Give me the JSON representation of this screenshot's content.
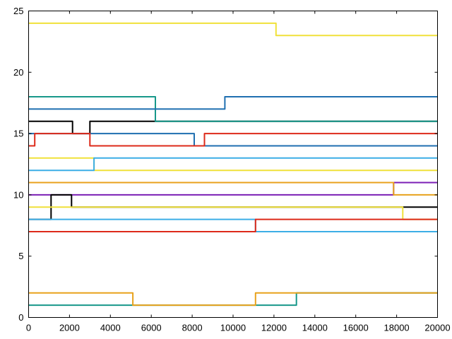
{
  "chart_data": {
    "type": "line",
    "title": "",
    "xlabel": "",
    "ylabel": "",
    "xlim": [
      0,
      20000
    ],
    "ylim": [
      0,
      25
    ],
    "x_ticks": [
      0,
      2000,
      4000,
      6000,
      8000,
      10000,
      12000,
      14000,
      16000,
      18000,
      20000
    ],
    "y_ticks": [
      0,
      5,
      10,
      15,
      20,
      25
    ],
    "grid": false,
    "legend": "none",
    "step_shape": "step",
    "series": [
      {
        "color": "#000000",
        "x": [
          0,
          2100,
          2150,
          2950,
          3000,
          20000
        ],
        "y": [
          16,
          16,
          15,
          15,
          16,
          16
        ]
      },
      {
        "color": "#1f6fb0",
        "x": [
          0,
          8000,
          8100,
          20000
        ],
        "y": [
          15,
          15,
          14,
          14
        ]
      },
      {
        "color": "#dd2a1a",
        "x": [
          0,
          250,
          300,
          2900,
          3000,
          8500,
          8600,
          20000
        ],
        "y": [
          14,
          14,
          15,
          15,
          14,
          14,
          15,
          15
        ]
      },
      {
        "color": "#7b1fb5",
        "x": [
          0,
          17800,
          17850,
          20000
        ],
        "y": [
          10,
          10,
          11,
          11
        ]
      },
      {
        "color": "#e8a21d",
        "x": [
          0,
          17800,
          17850,
          20000
        ],
        "y": [
          11,
          11,
          10,
          10
        ]
      },
      {
        "color": "#000000",
        "x": [
          0,
          1000,
          1100,
          2000,
          2100,
          18200,
          18300,
          20000
        ],
        "y": [
          8,
          8,
          10,
          10,
          9,
          9,
          9,
          9
        ]
      },
      {
        "color": "#f0e13a",
        "x": [
          0,
          2000,
          2100,
          18200,
          18300,
          20000
        ],
        "y": [
          9,
          9,
          9,
          9,
          8,
          8
        ]
      },
      {
        "color": "#3caee6",
        "x": [
          0,
          11000,
          11100,
          20000
        ],
        "y": [
          8,
          8,
          7,
          7
        ]
      },
      {
        "color": "#dd2a1a",
        "x": [
          0,
          11000,
          11100,
          20000
        ],
        "y": [
          7,
          7,
          8,
          8
        ]
      },
      {
        "color": "#17988a",
        "x": [
          0,
          6100,
          6200,
          20000
        ],
        "y": [
          18,
          18,
          16,
          16
        ]
      },
      {
        "color": "#1f6fb0",
        "x": [
          0,
          9500,
          9600,
          20000
        ],
        "y": [
          17,
          17,
          18,
          18
        ]
      },
      {
        "color": "#f0e13a",
        "x": [
          0,
          12000,
          12100,
          20000
        ],
        "y": [
          24,
          24,
          23,
          23
        ]
      },
      {
        "color": "#17988a",
        "x": [
          0,
          13000,
          13100,
          20000
        ],
        "y": [
          1,
          1,
          2,
          2
        ]
      },
      {
        "color": "#e8a21d",
        "x": [
          0,
          5000,
          5100,
          11000,
          11100,
          20000
        ],
        "y": [
          2,
          2,
          1,
          1,
          2,
          2
        ]
      },
      {
        "color": "#f0e13a",
        "x": [
          0,
          3100,
          3200,
          20000
        ],
        "y": [
          13,
          13,
          12,
          12
        ]
      },
      {
        "color": "#3caee6",
        "x": [
          0,
          3100,
          3200,
          20000
        ],
        "y": [
          12,
          12,
          13,
          13
        ]
      }
    ]
  }
}
